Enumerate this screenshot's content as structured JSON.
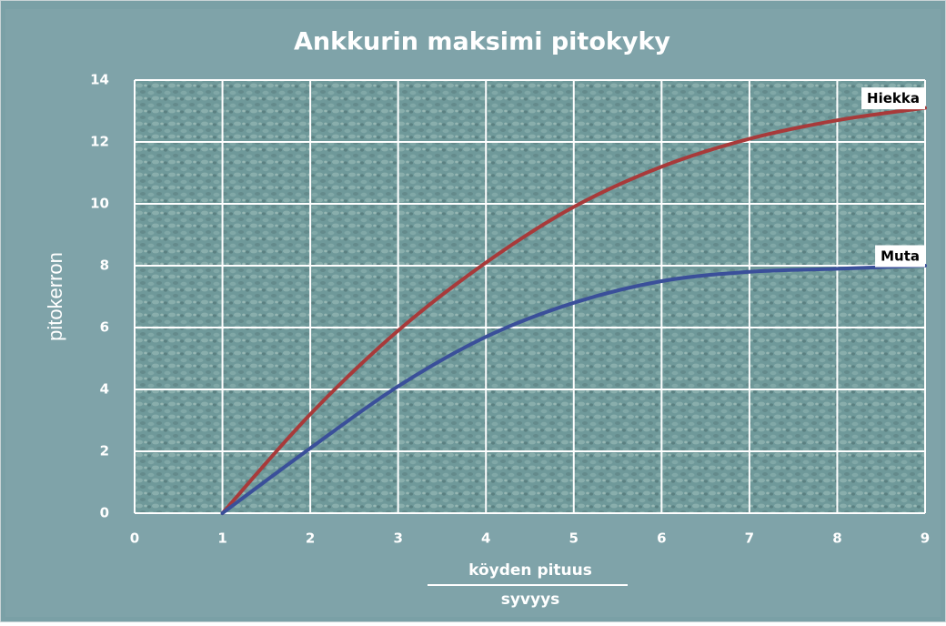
{
  "chart_data": {
    "type": "line",
    "title": "Ankkurin maksimi pitokyky",
    "y_label": "pitokerron",
    "x_label_numerator": "köyden pituus",
    "x_label_denominator": "syvyys",
    "x": [
      1,
      2,
      3,
      4,
      5,
      6,
      7,
      8,
      9
    ],
    "series": [
      {
        "name": "Hiekka",
        "color": "#a83a3a",
        "values": [
          0,
          3.2,
          5.9,
          8.1,
          9.9,
          11.2,
          12.1,
          12.7,
          13.1
        ]
      },
      {
        "name": "Muta",
        "color": "#3a4f9a",
        "values": [
          0,
          2.1,
          4.1,
          5.7,
          6.8,
          7.5,
          7.8,
          7.9,
          8.0
        ]
      }
    ],
    "xlim": [
      0,
      9
    ],
    "xticks": [
      0,
      1,
      2,
      3,
      4,
      5,
      6,
      7,
      8,
      9
    ],
    "ylim": [
      0,
      14
    ],
    "yticks": [
      0,
      2,
      4,
      6,
      8,
      10,
      12,
      14
    ],
    "grid": true
  }
}
